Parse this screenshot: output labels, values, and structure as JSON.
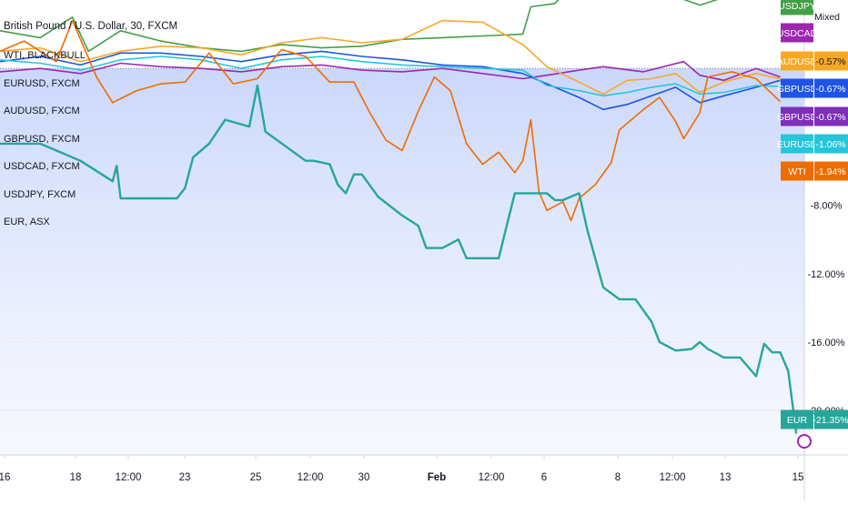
{
  "header": {
    "symbol_title": "British Pound / U.S. Dollar, 30, FXCM"
  },
  "legend": [
    "WTI, BLACKBULL",
    "EURUSD, FXCM",
    "AUDUSD, FXCM",
    "GBPUSD, FXCM",
    "USDCAD, FXCM",
    "USDJPY, FXCM",
    "EUR, ASX"
  ],
  "mode_label": "Mixed",
  "chart_data": {
    "type": "line",
    "x_tick_labels": [
      "16",
      "18",
      "12:00",
      "23",
      "25",
      "12:00",
      "30",
      "Feb",
      "12:00",
      "6",
      "8",
      "12:00",
      "13",
      "15"
    ],
    "y_tick_labels": [
      "-8.00%",
      "-12.00%",
      "-16.00%",
      "-20.00%"
    ],
    "y_ticks": [
      -8,
      -12,
      -16,
      -20
    ],
    "ylim": [
      4,
      -22.6
    ],
    "x_range": [
      0,
      100
    ],
    "grid": true,
    "series": [
      {
        "name": "USDJPY",
        "value_label": "",
        "color": "#43a047",
        "points": [
          [
            0,
            2.2
          ],
          [
            5,
            1.8
          ],
          [
            9,
            3.0
          ],
          [
            11,
            1.0
          ],
          [
            15,
            2.2
          ],
          [
            20,
            1.6
          ],
          [
            25,
            1.2
          ],
          [
            30,
            1.0
          ],
          [
            35,
            1.4
          ],
          [
            40,
            1.2
          ],
          [
            45,
            1.3
          ],
          [
            50,
            1.7
          ],
          [
            55,
            1.8
          ],
          [
            60,
            1.9
          ],
          [
            65,
            2.0
          ],
          [
            66,
            3.6
          ],
          [
            69,
            3.8
          ],
          [
            72,
            5.4
          ],
          [
            75,
            4.8
          ],
          [
            80,
            4.9
          ],
          [
            84,
            4.2
          ],
          [
            87,
            3.7
          ],
          [
            91,
            4.3
          ],
          [
            95,
            5.0
          ],
          [
            97,
            4.1
          ]
        ]
      },
      {
        "name": "USDCAD",
        "value_label": "",
        "color": "#9c27b0",
        "points": [
          [
            0,
            -0.2
          ],
          [
            5,
            0.0
          ],
          [
            10,
            -0.3
          ],
          [
            15,
            0.3
          ],
          [
            20,
            0.1
          ],
          [
            25,
            0.0
          ],
          [
            30,
            -0.2
          ],
          [
            35,
            0.1
          ],
          [
            40,
            0.2
          ],
          [
            45,
            -0.1
          ],
          [
            50,
            -0.2
          ],
          [
            55,
            0.0
          ],
          [
            60,
            -0.3
          ],
          [
            65,
            -0.6
          ],
          [
            68,
            -0.4
          ],
          [
            72,
            -0.1
          ],
          [
            75,
            0.1
          ],
          [
            80,
            -0.2
          ],
          [
            85,
            0.4
          ],
          [
            87,
            -0.4
          ],
          [
            90,
            -0.7
          ],
          [
            94,
            0.0
          ],
          [
            97,
            -0.5
          ]
        ]
      },
      {
        "name": "AUDUSD",
        "value_label": "-0.57%",
        "color": "#f9a825",
        "points": [
          [
            0,
            1.0
          ],
          [
            5,
            1.2
          ],
          [
            10,
            0.4
          ],
          [
            15,
            1.0
          ],
          [
            20,
            1.3
          ],
          [
            25,
            1.2
          ],
          [
            30,
            0.8
          ],
          [
            35,
            1.5
          ],
          [
            40,
            1.8
          ],
          [
            45,
            1.5
          ],
          [
            50,
            1.7
          ],
          [
            55,
            2.8
          ],
          [
            60,
            2.7
          ],
          [
            65,
            1.4
          ],
          [
            68,
            0.1
          ],
          [
            72,
            -0.8
          ],
          [
            75,
            -1.5
          ],
          [
            78,
            -0.7
          ],
          [
            81,
            -0.6
          ],
          [
            84,
            -0.3
          ],
          [
            87,
            -1.4
          ],
          [
            90,
            -0.8
          ],
          [
            94,
            -0.3
          ],
          [
            97,
            -0.6
          ]
        ]
      },
      {
        "name": "GBPUSD",
        "value_label": "-0.67%",
        "color": "#1e53e5",
        "points": [
          [
            0,
            0.4
          ],
          [
            5,
            0.7
          ],
          [
            10,
            0.2
          ],
          [
            15,
            0.9
          ],
          [
            20,
            0.9
          ],
          [
            25,
            0.7
          ],
          [
            30,
            0.4
          ],
          [
            35,
            0.8
          ],
          [
            40,
            1.0
          ],
          [
            45,
            0.7
          ],
          [
            50,
            0.5
          ],
          [
            55,
            0.2
          ],
          [
            60,
            0.1
          ],
          [
            65,
            -0.3
          ],
          [
            68,
            -0.9
          ],
          [
            72,
            -1.7
          ],
          [
            75,
            -2.4
          ],
          [
            78,
            -2.1
          ],
          [
            81,
            -1.6
          ],
          [
            84,
            -1.1
          ],
          [
            87,
            -2.0
          ],
          [
            90,
            -1.6
          ],
          [
            94,
            -1.1
          ],
          [
            97,
            -0.7
          ]
        ]
      },
      {
        "name": "EURUSD",
        "value_label": "-1.06%",
        "color": "#26c6da",
        "points": [
          [
            0,
            0.5
          ],
          [
            5,
            0.3
          ],
          [
            10,
            -0.1
          ],
          [
            15,
            0.5
          ],
          [
            20,
            0.7
          ],
          [
            25,
            0.5
          ],
          [
            30,
            0.0
          ],
          [
            35,
            0.5
          ],
          [
            40,
            0.7
          ],
          [
            45,
            0.4
          ],
          [
            50,
            0.2
          ],
          [
            55,
            0.1
          ],
          [
            60,
            0.0
          ],
          [
            65,
            -0.1
          ],
          [
            68,
            -1.0
          ],
          [
            72,
            -1.3
          ],
          [
            75,
            -1.6
          ],
          [
            78,
            -1.4
          ],
          [
            81,
            -1.1
          ],
          [
            84,
            -0.9
          ],
          [
            87,
            -1.5
          ],
          [
            90,
            -1.4
          ],
          [
            94,
            -1.0
          ],
          [
            97,
            -1.06
          ]
        ]
      },
      {
        "name": "WTI",
        "value_label": "-1.94%",
        "color": "#ef6c00",
        "points": [
          [
            0,
            1.0
          ],
          [
            3,
            1.6
          ],
          [
            7,
            0.4
          ],
          [
            9,
            2.8
          ],
          [
            12,
            -0.5
          ],
          [
            14,
            -2.0
          ],
          [
            17,
            -1.3
          ],
          [
            20,
            -0.9
          ],
          [
            23,
            -0.8
          ],
          [
            26,
            0.9
          ],
          [
            29,
            -0.9
          ],
          [
            32,
            -0.6
          ],
          [
            35,
            1.1
          ],
          [
            38,
            0.7
          ],
          [
            41,
            -0.8
          ],
          [
            44,
            -0.8
          ],
          [
            46,
            -2.6
          ],
          [
            48,
            -4.2
          ],
          [
            50,
            -4.8
          ],
          [
            52,
            -2.5
          ],
          [
            54,
            -0.5
          ],
          [
            56,
            -1.3
          ],
          [
            58,
            -4.4
          ],
          [
            60,
            -5.6
          ],
          [
            62,
            -4.9
          ],
          [
            64,
            -6.1
          ],
          [
            65,
            -5.4
          ],
          [
            66,
            -3.0
          ],
          [
            67,
            -7.2
          ],
          [
            68,
            -8.3
          ],
          [
            70,
            -7.8
          ],
          [
            71,
            -8.9
          ],
          [
            72,
            -7.6
          ],
          [
            74,
            -6.8
          ],
          [
            76,
            -5.5
          ],
          [
            77,
            -3.6
          ],
          [
            80,
            -2.4
          ],
          [
            82,
            -1.7
          ],
          [
            84,
            -3.1
          ],
          [
            85,
            -4.1
          ],
          [
            87,
            -2.6
          ],
          [
            88,
            -0.5
          ],
          [
            91,
            -0.2
          ],
          [
            94,
            -0.6
          ],
          [
            97,
            -1.94
          ]
        ]
      },
      {
        "name": "EUR",
        "value_label": "-21.35%",
        "color": "#26a69a",
        "points": [
          [
            0,
            -4.4
          ],
          [
            5,
            -4.4
          ],
          [
            10,
            -5.4
          ],
          [
            14,
            -6.6
          ],
          [
            14.5,
            -5.7
          ],
          [
            15,
            -7.6
          ],
          [
            20,
            -7.6
          ],
          [
            22,
            -7.6
          ],
          [
            23,
            -7.0
          ],
          [
            24,
            -5.2
          ],
          [
            26,
            -4.4
          ],
          [
            28,
            -3.0
          ],
          [
            31,
            -3.4
          ],
          [
            32,
            -1.0
          ],
          [
            33,
            -3.7
          ],
          [
            38,
            -5.4
          ],
          [
            39,
            -5.4
          ],
          [
            41,
            -5.6
          ],
          [
            42,
            -6.8
          ],
          [
            43,
            -7.3
          ],
          [
            44,
            -6.2
          ],
          [
            45,
            -6.2
          ],
          [
            47,
            -7.5
          ],
          [
            50,
            -8.6
          ],
          [
            52,
            -9.2
          ],
          [
            53,
            -10.5
          ],
          [
            55,
            -10.5
          ],
          [
            57,
            -10.0
          ],
          [
            58,
            -11.1
          ],
          [
            60,
            -11.1
          ],
          [
            62,
            -11.1
          ],
          [
            63,
            -9.2
          ],
          [
            64,
            -7.3
          ],
          [
            68,
            -7.3
          ],
          [
            69,
            -7.7
          ],
          [
            70,
            -7.7
          ],
          [
            72,
            -7.3
          ],
          [
            73,
            -9.4
          ],
          [
            75,
            -12.8
          ],
          [
            77,
            -13.5
          ],
          [
            79,
            -13.5
          ],
          [
            81,
            -14.8
          ],
          [
            82,
            -16.0
          ],
          [
            84,
            -16.5
          ],
          [
            86,
            -16.4
          ],
          [
            87,
            -16.0
          ],
          [
            88,
            -16.4
          ],
          [
            90,
            -16.9
          ],
          [
            92,
            -16.9
          ],
          [
            94,
            -18.0
          ],
          [
            95,
            -16.1
          ],
          [
            96,
            -16.6
          ],
          [
            97,
            -16.6
          ],
          [
            98,
            -17.7
          ],
          [
            99,
            -21.35
          ]
        ]
      }
    ]
  }
}
